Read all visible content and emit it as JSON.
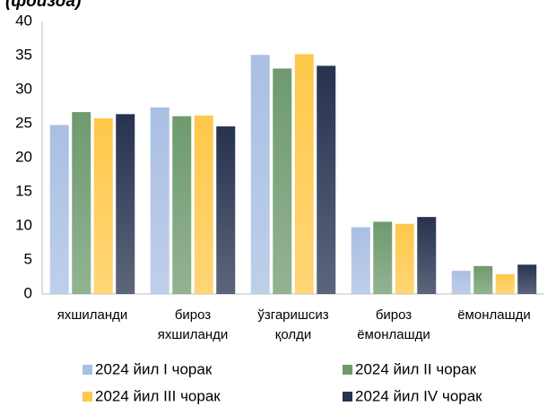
{
  "chart_data": {
    "type": "bar",
    "title": "(фоизда)",
    "categories": [
      [
        "яхшиланди"
      ],
      [
        "бироз",
        "яхшиланди"
      ],
      [
        "ўзгаришсиз",
        "қолди"
      ],
      [
        "бироз",
        "ёмонлашди"
      ],
      [
        "ёмонлашди"
      ]
    ],
    "series": [
      {
        "name": "2024 йил I чорак",
        "color": "#a9bfe3",
        "values": [
          24.8,
          27.4,
          35.1,
          9.8,
          3.4
        ]
      },
      {
        "name": "2024 йил II чорак",
        "color": "#6e9a6e",
        "values": [
          26.7,
          26.1,
          33.1,
          10.6,
          4.1
        ]
      },
      {
        "name": "2024 йил III чорак",
        "color": "#ffc84a",
        "values": [
          25.8,
          26.2,
          35.2,
          10.3,
          2.9
        ]
      },
      {
        "name": "2024 йил IV чорак",
        "color": "#26324f",
        "values": [
          26.4,
          24.6,
          33.5,
          11.3,
          4.3
        ]
      }
    ],
    "ylim": [
      0,
      40
    ],
    "yticks": [
      0,
      5,
      10,
      15,
      20,
      25,
      30,
      35,
      40
    ],
    "grid": false
  }
}
